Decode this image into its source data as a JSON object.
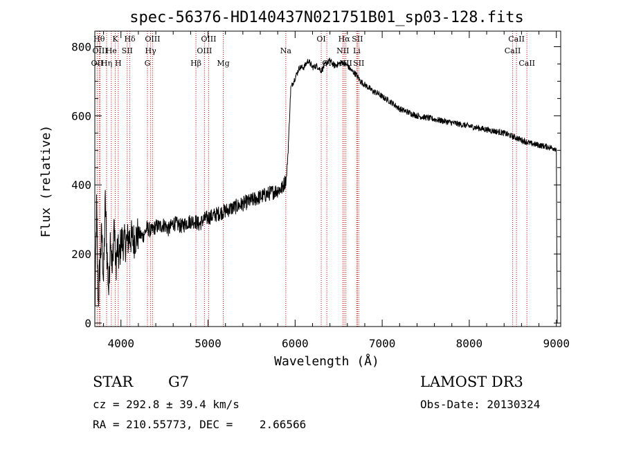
{
  "chart_data": {
    "type": "line",
    "title": "spec-56376-HD140437N021751B01_sp03-128.fits",
    "xlabel": "Wavelength (Å)",
    "ylabel": "Flux (relative)",
    "xlim": [
      3700,
      9050
    ],
    "ylim": [
      -10,
      845
    ],
    "x_ticks": [
      4000,
      5000,
      6000,
      7000,
      8000,
      9000
    ],
    "y_ticks": [
      0,
      200,
      400,
      600,
      800
    ],
    "x_tick_labels": [
      "4000",
      "5000",
      "6000",
      "7000",
      "8000",
      "9000"
    ],
    "y_tick_labels": [
      "0",
      "200",
      "400",
      "600",
      "800"
    ],
    "series": [
      {
        "name": "flux",
        "x": [
          3700,
          3720,
          3740,
          3760,
          3780,
          3800,
          3820,
          3840,
          3860,
          3880,
          3900,
          3920,
          3940,
          3960,
          3980,
          4000,
          4050,
          4100,
          4150,
          4200,
          4250,
          4300,
          4350,
          4400,
          4450,
          4500,
          4550,
          4600,
          4650,
          4700,
          4750,
          4800,
          4850,
          4900,
          4950,
          5000,
          5050,
          5100,
          5150,
          5200,
          5250,
          5300,
          5350,
          5400,
          5450,
          5500,
          5550,
          5600,
          5650,
          5700,
          5750,
          5800,
          5850,
          5900,
          5920,
          5950,
          6000,
          6050,
          6100,
          6150,
          6200,
          6250,
          6300,
          6350,
          6400,
          6450,
          6500,
          6550,
          6600,
          6650,
          6700,
          6750,
          6800,
          6850,
          6900,
          6950,
          7000,
          7100,
          7200,
          7300,
          7400,
          7500,
          7600,
          7700,
          7800,
          7900,
          8000,
          8100,
          8200,
          8300,
          8400,
          8500,
          8600,
          8700,
          8800,
          8900,
          9000,
          9010
        ],
        "y": [
          30,
          330,
          60,
          180,
          260,
          120,
          350,
          200,
          90,
          270,
          140,
          300,
          160,
          220,
          180,
          240,
          230,
          250,
          240,
          260,
          250,
          275,
          265,
          280,
          280,
          285,
          270,
          290,
          285,
          280,
          290,
          295,
          295,
          285,
          300,
          305,
          310,
          315,
          320,
          325,
          330,
          335,
          340,
          345,
          350,
          355,
          360,
          365,
          370,
          375,
          380,
          385,
          390,
          420,
          500,
          680,
          710,
          740,
          740,
          760,
          740,
          745,
          730,
          750,
          760,
          745,
          750,
          755,
          745,
          730,
          720,
          700,
          690,
          680,
          670,
          665,
          655,
          640,
          620,
          610,
          600,
          595,
          590,
          585,
          580,
          575,
          570,
          565,
          560,
          555,
          550,
          540,
          530,
          520,
          515,
          510,
          505,
          0
        ]
      }
    ],
    "lines": [
      {
        "label": "OII",
        "x": 3727,
        "row": 2
      },
      {
        "label": "Hθ",
        "x": 3750,
        "row": 0
      },
      {
        "label": "OIII",
        "x": 3760,
        "row": 1
      },
      {
        "label": "Hη",
        "x": 3835,
        "row": 2
      },
      {
        "label": "He",
        "x": 3889,
        "row": 1
      },
      {
        "label": "K",
        "x": 3934,
        "row": 0
      },
      {
        "label": "H",
        "x": 3969,
        "row": 2
      },
      {
        "label": "SII",
        "x": 4072,
        "row": 1
      },
      {
        "label": "Hδ",
        "x": 4102,
        "row": 0
      },
      {
        "label": "G",
        "x": 4304,
        "row": 2
      },
      {
        "label": "Hγ",
        "x": 4341,
        "row": 1
      },
      {
        "label": "OIII",
        "x": 4363,
        "row": 0
      },
      {
        "label": "Hβ",
        "x": 4861,
        "row": 2
      },
      {
        "label": "OIII",
        "x": 4959,
        "row": 1
      },
      {
        "label": "OIII",
        "x": 5007,
        "row": 0
      },
      {
        "label": "Mg",
        "x": 5175,
        "row": 2
      },
      {
        "label": "Na",
        "x": 5893,
        "row": 1
      },
      {
        "label": "OI",
        "x": 6300,
        "row": 0
      },
      {
        "label": "OI",
        "x": 6364,
        "row": 2
      },
      {
        "label": "NII",
        "x": 6548,
        "row": 1
      },
      {
        "label": "Hα",
        "x": 6563,
        "row": 0
      },
      {
        "label": "NII",
        "x": 6583,
        "row": 2
      },
      {
        "label": "Li",
        "x": 6708,
        "row": 1
      },
      {
        "label": "SII",
        "x": 6716,
        "row": 0
      },
      {
        "label": "SII",
        "x": 6731,
        "row": 2
      },
      {
        "label": "CaII",
        "x": 8498,
        "row": 1
      },
      {
        "label": "CaII",
        "x": 8542,
        "row": 0
      },
      {
        "label": "CaII",
        "x": 8662,
        "row": 2
      }
    ],
    "line_color": "#cc0000"
  },
  "info": {
    "object_type": "STAR",
    "subclass": "G7",
    "cz": "cz = 292.8 ± 39.4 km/s",
    "coords": "RA = 210.55773, DEC =    2.66566",
    "survey": "LAMOST DR3",
    "obs_date": "Obs-Date: 20130324"
  }
}
